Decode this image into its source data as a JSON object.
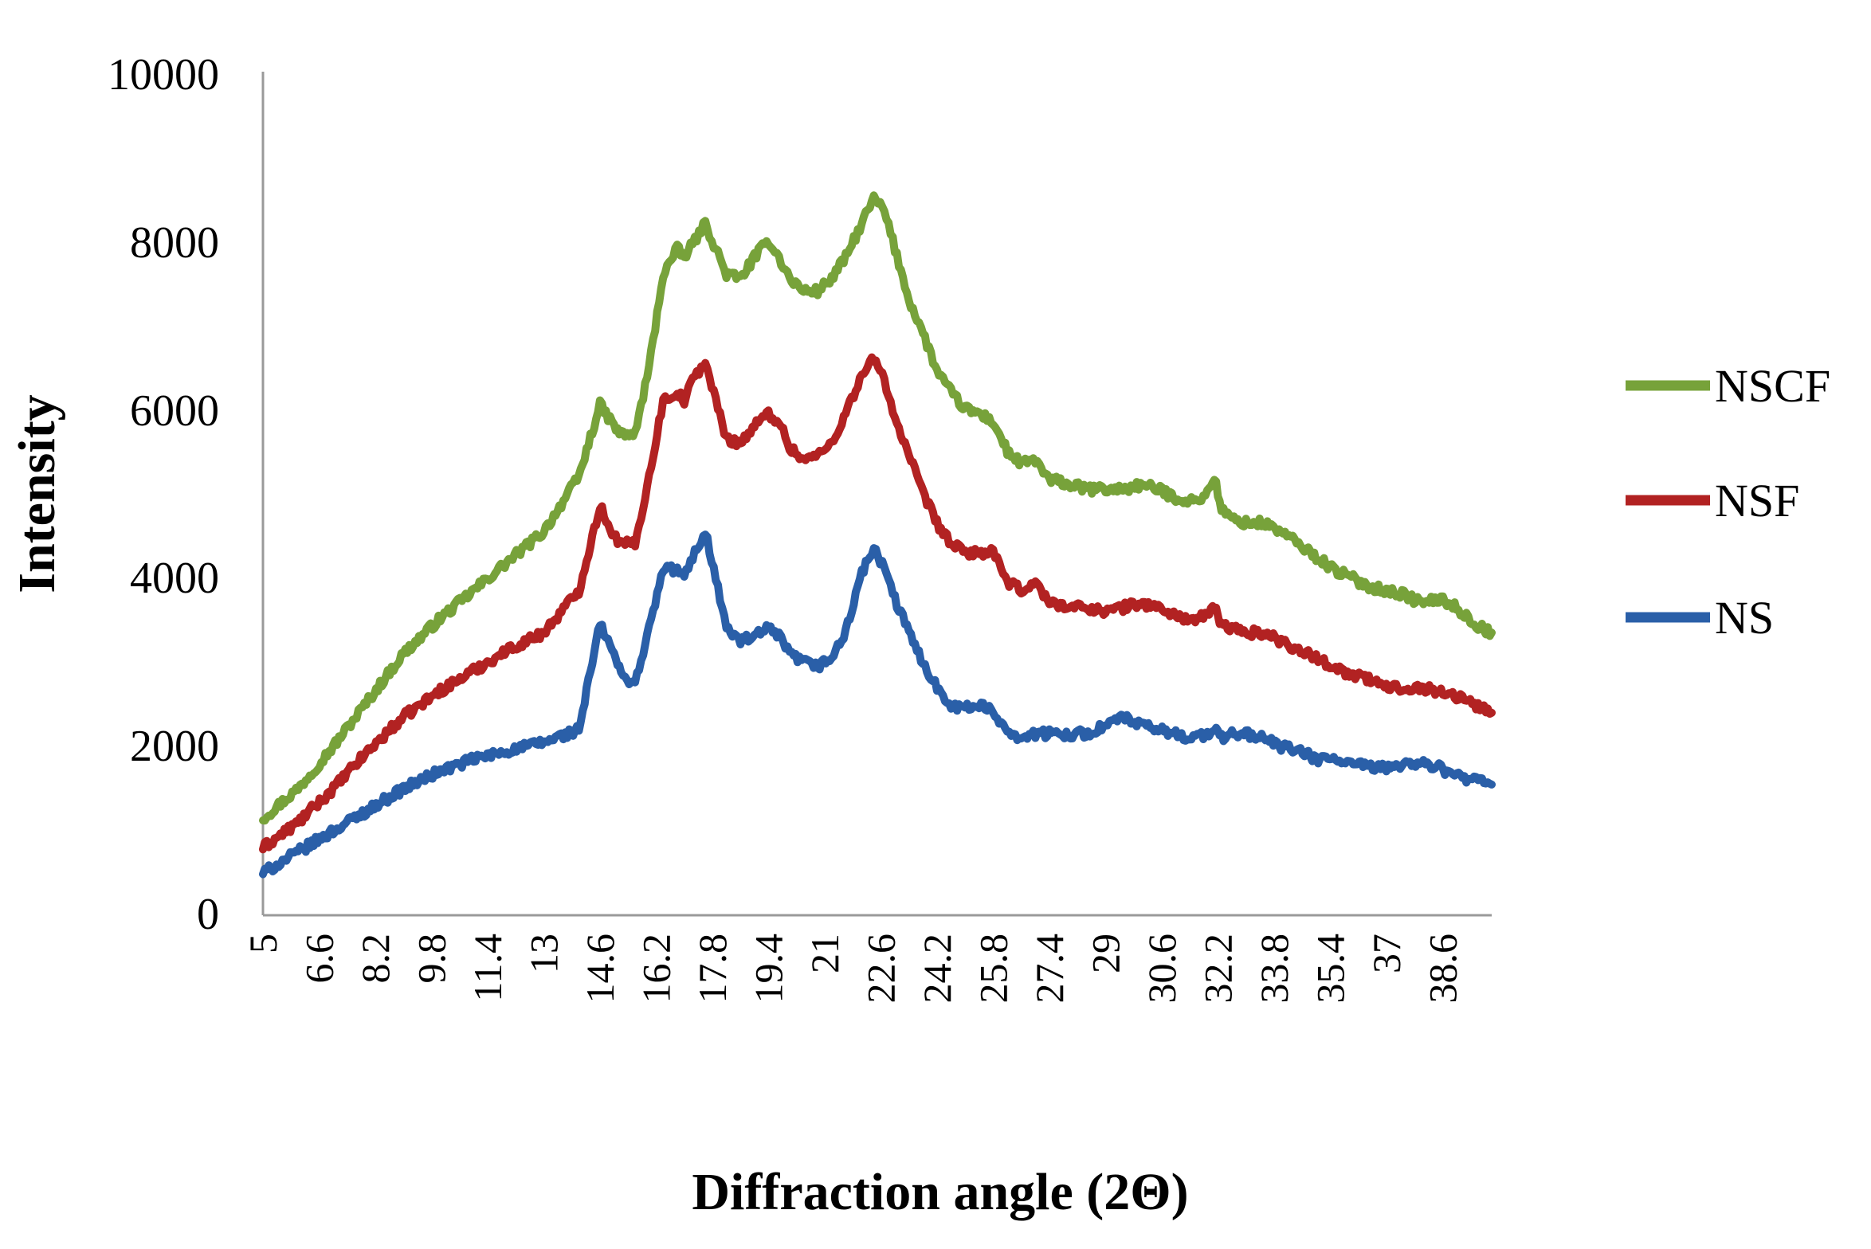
{
  "chart_data": {
    "type": "line",
    "title": "",
    "xlabel": "Diffraction angle (2Θ)",
    "ylabel": "Intensity",
    "ylim": [
      0,
      10000
    ],
    "xlim": [
      5,
      40
    ],
    "yticks": [
      "0",
      "2000",
      "4000",
      "6000",
      "8000",
      "10000"
    ],
    "xticks": [
      "5",
      "6.6",
      "8.2",
      "9.8",
      "11.4",
      "13",
      "14.6",
      "16.2",
      "17.8",
      "19.4",
      "21",
      "22.6",
      "24.2",
      "25.8",
      "27.4",
      "29",
      "30.6",
      "32.2",
      "33.8",
      "35.4",
      "37",
      "38.6"
    ],
    "legend_position": "right",
    "series": [
      {
        "name": "NSCF",
        "color": "#77a23a",
        "x": [
          5,
          6,
          7,
          8,
          9,
          10,
          11,
          12,
          13,
          14,
          14.6,
          15.0,
          15.2,
          15.6,
          16.0,
          16.4,
          16.8,
          17.0,
          17.3,
          17.6,
          17.9,
          18.2,
          18.6,
          19.0,
          19.4,
          19.7,
          20.0,
          20.4,
          20.8,
          21.2,
          21.6,
          22.0,
          22.4,
          22.7,
          23.0,
          23.4,
          23.8,
          24.2,
          24.6,
          25.0,
          25.4,
          25.8,
          26.2,
          26.6,
          27.0,
          27.4,
          27.6,
          28.0,
          28.5,
          29.0,
          29.5,
          30.0,
          30.5,
          31.0,
          31.5,
          31.9,
          32.1,
          32.3,
          32.6,
          33.0,
          33.5,
          34.0,
          34.5,
          35.0,
          35.5,
          36.0,
          36.5,
          37.0,
          37.5,
          38.0,
          38.5,
          39.0,
          39.5,
          40.0
        ],
        "values": [
          1150,
          1500,
          2000,
          2550,
          3100,
          3500,
          3850,
          4200,
          4550,
          5200,
          6050,
          5800,
          5700,
          5700,
          6500,
          7600,
          7900,
          7800,
          8000,
          8200,
          7900,
          7600,
          7550,
          7800,
          8000,
          7800,
          7550,
          7400,
          7400,
          7550,
          7800,
          8150,
          8500,
          8350,
          7900,
          7300,
          6900,
          6450,
          6200,
          6000,
          5950,
          5850,
          5500,
          5350,
          5400,
          5150,
          5150,
          5100,
          5050,
          5050,
          5050,
          5100,
          5050,
          4950,
          4900,
          5000,
          5200,
          4800,
          4700,
          4650,
          4650,
          4550,
          4400,
          4250,
          4100,
          4000,
          3900,
          3850,
          3800,
          3700,
          3750,
          3650,
          3450,
          3350
        ]
      },
      {
        "name": "NSF",
        "color": "#b22222",
        "x": [
          5,
          6,
          7,
          8,
          9,
          10,
          11,
          12,
          13,
          14,
          14.6,
          15.0,
          15.2,
          15.6,
          16.0,
          16.4,
          16.8,
          17.0,
          17.3,
          17.6,
          17.9,
          18.2,
          18.6,
          19.0,
          19.4,
          19.7,
          20.0,
          20.4,
          20.8,
          21.2,
          21.6,
          22.0,
          22.4,
          22.7,
          23.0,
          23.4,
          23.8,
          24.2,
          24.6,
          25.0,
          25.4,
          25.8,
          26.2,
          26.6,
          27.0,
          27.4,
          27.6,
          28.0,
          28.5,
          29.0,
          29.5,
          30.0,
          30.5,
          31.0,
          31.5,
          31.9,
          32.1,
          32.3,
          32.6,
          33.0,
          33.5,
          34.0,
          34.5,
          35.0,
          35.5,
          36.0,
          36.5,
          37.0,
          37.5,
          38.0,
          38.5,
          39.0,
          39.5,
          40.0
        ],
        "values": [
          800,
          1100,
          1500,
          1950,
          2350,
          2650,
          2900,
          3150,
          3350,
          3850,
          4850,
          4500,
          4400,
          4400,
          5200,
          6100,
          6200,
          6100,
          6400,
          6550,
          6100,
          5650,
          5600,
          5800,
          5950,
          5850,
          5550,
          5400,
          5450,
          5600,
          5950,
          6350,
          6600,
          6350,
          5900,
          5450,
          5000,
          4650,
          4400,
          4300,
          4300,
          4300,
          3950,
          3850,
          3950,
          3700,
          3700,
          3650,
          3650,
          3600,
          3650,
          3700,
          3650,
          3550,
          3500,
          3550,
          3650,
          3450,
          3400,
          3350,
          3350,
          3250,
          3150,
          3050,
          2950,
          2850,
          2800,
          2700,
          2700,
          2700,
          2650,
          2600,
          2500,
          2400
        ]
      },
      {
        "name": "NS",
        "color": "#2a5fa8",
        "x": [
          5,
          6,
          7,
          8,
          9,
          10,
          11,
          12,
          13,
          14,
          14.6,
          15.0,
          15.2,
          15.6,
          16.0,
          16.4,
          16.8,
          17.0,
          17.3,
          17.6,
          17.9,
          18.2,
          18.6,
          19.0,
          19.4,
          19.7,
          20.0,
          20.4,
          20.8,
          21.2,
          21.6,
          22.0,
          22.4,
          22.7,
          23.0,
          23.4,
          23.8,
          24.2,
          24.6,
          25.0,
          25.4,
          25.8,
          26.2,
          26.6,
          27.0,
          27.4,
          27.6,
          28.0,
          28.5,
          29.0,
          29.5,
          30.0,
          30.5,
          31.0,
          31.5,
          31.9,
          32.1,
          32.3,
          32.6,
          33.0,
          33.5,
          34.0,
          34.5,
          35.0,
          35.5,
          36.0,
          36.5,
          37.0,
          37.5,
          38.0,
          38.5,
          39.0,
          39.5,
          40.0
        ],
        "values": [
          500,
          750,
          1000,
          1250,
          1500,
          1700,
          1850,
          1950,
          2050,
          2200,
          3450,
          3100,
          2850,
          2750,
          3400,
          4100,
          4100,
          4000,
          4300,
          4550,
          4000,
          3400,
          3250,
          3300,
          3400,
          3300,
          3100,
          3000,
          2950,
          3050,
          3350,
          4000,
          4350,
          4100,
          3750,
          3350,
          3000,
          2700,
          2500,
          2450,
          2500,
          2400,
          2200,
          2100,
          2150,
          2150,
          2150,
          2150,
          2150,
          2250,
          2350,
          2250,
          2200,
          2150,
          2100,
          2150,
          2200,
          2100,
          2150,
          2150,
          2100,
          2000,
          1950,
          1850,
          1850,
          1800,
          1750,
          1750,
          1800,
          1800,
          1750,
          1650,
          1600,
          1550
        ]
      }
    ]
  }
}
